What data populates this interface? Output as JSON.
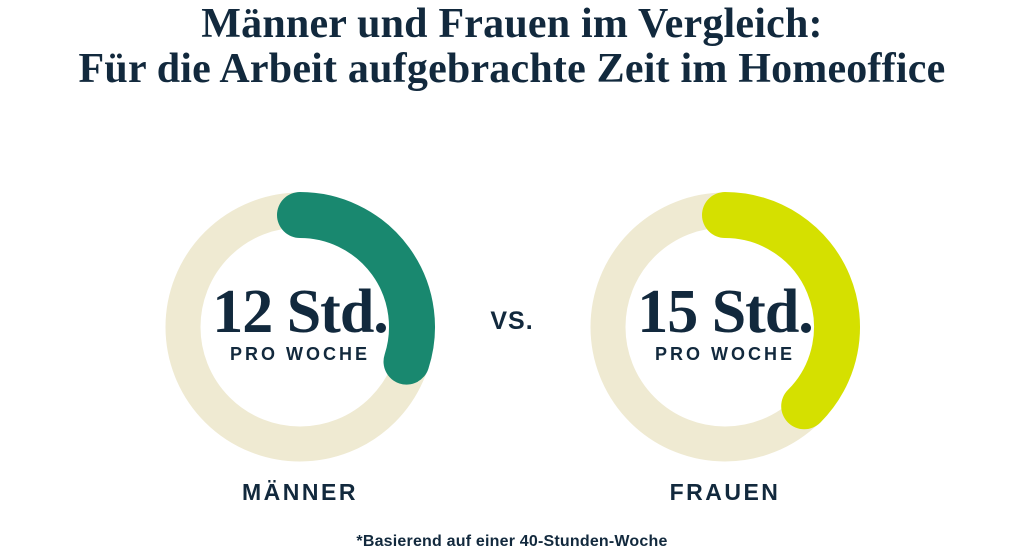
{
  "palette": {
    "navy": "#12293D",
    "cream": "#EFEAD2",
    "teal": "#19886F",
    "lime": "#D5E000",
    "background": "#FFFFFF"
  },
  "title": {
    "line1": "Männer und Frauen im Vergleich:",
    "line2": "Für die Arbeit aufgebrachte Zeit im Homeoffice"
  },
  "vs_label": "vs.",
  "footnote": "*Basierend auf einer 40-Stunden-Woche",
  "chart_data": {
    "type": "pie",
    "variant": "donut-comparison",
    "title": "Männer und Frauen im Vergleich: Für die Arbeit aufgebrachte Zeit im Homeoffice",
    "unit": "Stunden pro Woche",
    "total_reference_hours": 40,
    "footnote": "*Basierend auf einer 40-Stunden-Woche",
    "series": [
      {
        "label": "MÄNNER",
        "hours": 12,
        "fraction": 0.3,
        "value_text": "12 Std.",
        "sub_label": "PRO WOCHE",
        "arc_color": "#19886F",
        "track_color": "#EFEAD2"
      },
      {
        "label": "FRAUEN",
        "hours": 15,
        "fraction": 0.375,
        "value_text": "15 Std.",
        "sub_label": "PRO WOCHE",
        "arc_color": "#D5E000",
        "track_color": "#EFEAD2"
      }
    ]
  }
}
